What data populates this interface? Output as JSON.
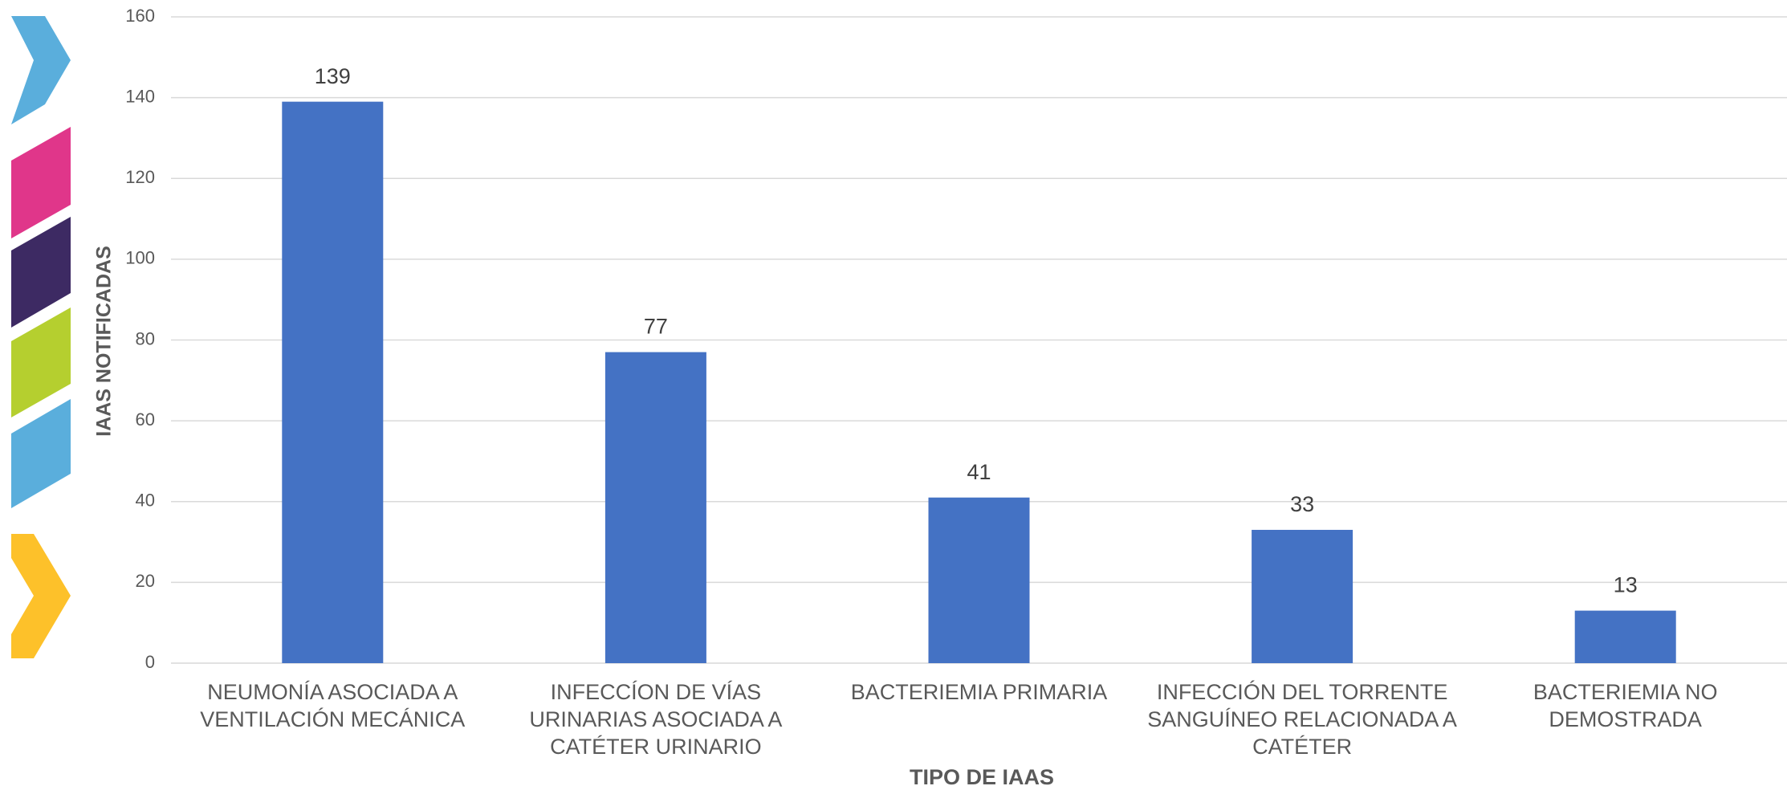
{
  "chart_data": {
    "type": "bar",
    "x_label": "TIPO DE IAAS",
    "y_label": "IAAS NOTIFICADAS",
    "categories": [
      "NEUMONÍA ASOCIADA A VENTILACIÓN MECÁNICA",
      "INFECCÍON DE VÍAS URINARIAS ASOCIADA A CATÉTER URINARIO",
      "BACTERIEMIA PRIMARIA",
      "INFECCIÓN DEL TORRENTE SANGUÍNEO RELACIONADA A CATÉTER",
      "BACTERIEMIA NO DEMOSTRADA"
    ],
    "values": [
      139,
      77,
      41,
      33,
      13
    ],
    "color": "#4472c4",
    "ylim": [
      0,
      160
    ],
    "yticks": [
      0,
      20,
      40,
      60,
      80,
      100,
      120,
      140,
      160
    ],
    "grid": true
  }
}
